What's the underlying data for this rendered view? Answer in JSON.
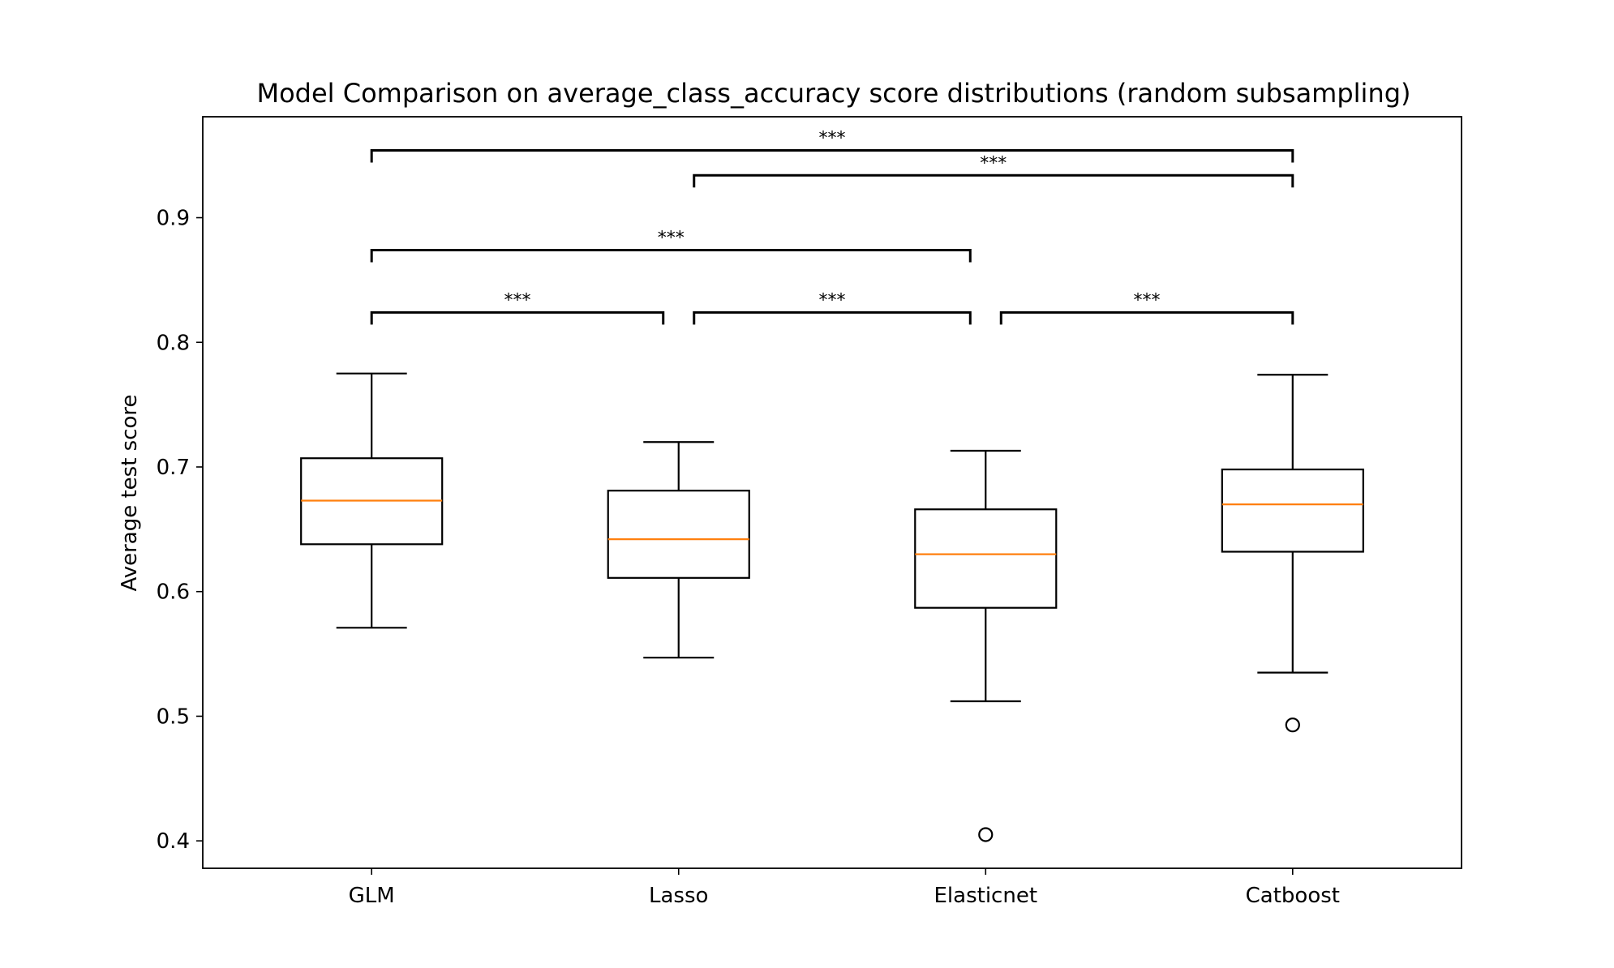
{
  "chart_data": {
    "type": "boxplot",
    "title": "Model Comparison on average_class_accuracy score distributions (random subsampling)",
    "xlabel": "",
    "ylabel": "Average test score",
    "ylim": [
      0.378,
      0.981
    ],
    "yticks": [
      0.4,
      0.5,
      0.6,
      0.7,
      0.8,
      0.9
    ],
    "ytick_labels": [
      "0.4",
      "0.5",
      "0.6",
      "0.7",
      "0.8",
      "0.9"
    ],
    "grid": false,
    "categories": [
      "GLM",
      "Lasso",
      "Elasticnet",
      "Catboost"
    ],
    "boxes": [
      {
        "label": "GLM",
        "whisker_low": 0.571,
        "q1": 0.638,
        "median": 0.673,
        "q3": 0.707,
        "whisker_high": 0.775,
        "outliers": []
      },
      {
        "label": "Lasso",
        "whisker_low": 0.547,
        "q1": 0.611,
        "median": 0.642,
        "q3": 0.681,
        "whisker_high": 0.72,
        "outliers": []
      },
      {
        "label": "Elasticnet",
        "whisker_low": 0.512,
        "q1": 0.587,
        "median": 0.63,
        "q3": 0.666,
        "whisker_high": 0.713,
        "outliers": [
          0.405
        ]
      },
      {
        "label": "Catboost",
        "whisker_low": 0.535,
        "q1": 0.632,
        "median": 0.67,
        "q3": 0.698,
        "whisker_high": 0.774,
        "outliers": [
          0.493
        ]
      }
    ],
    "significance": [
      {
        "from": "GLM",
        "to": "Lasso",
        "level": 0.824,
        "label": "***"
      },
      {
        "from": "Lasso",
        "to": "Elasticnet",
        "level": 0.824,
        "label": "***"
      },
      {
        "from": "Elasticnet",
        "to": "Catboost",
        "level": 0.824,
        "label": "***"
      },
      {
        "from": "GLM",
        "to": "Elasticnet",
        "level": 0.874,
        "label": "***"
      },
      {
        "from": "Lasso",
        "to": "Catboost",
        "level": 0.934,
        "label": "***"
      },
      {
        "from": "GLM",
        "to": "Catboost",
        "level": 0.954,
        "label": "***"
      }
    ],
    "colors": {
      "box": "#000000",
      "median": "#ff7f0e",
      "axes": "#000000"
    }
  }
}
